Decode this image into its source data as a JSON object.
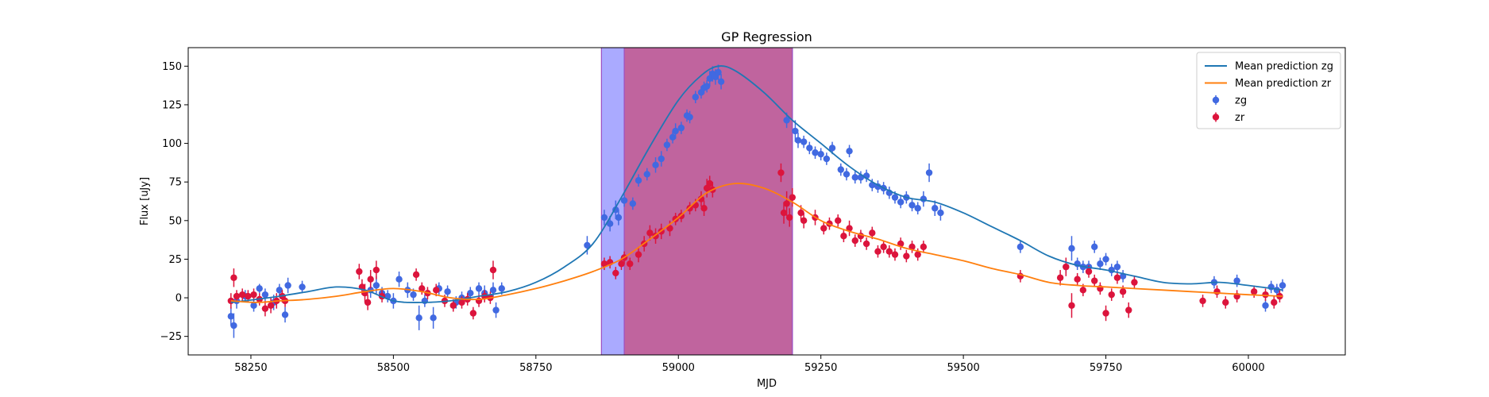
{
  "chart_data": {
    "type": "scatter",
    "title": "GP Regression",
    "xlabel": "MJD",
    "ylabel": "Flux [uJy]",
    "xlim": [
      58140,
      60170
    ],
    "ylim": [
      -37,
      162
    ],
    "xticks": [
      58250,
      58500,
      58750,
      59000,
      59250,
      59500,
      59750,
      60000
    ],
    "yticks": [
      -25,
      0,
      25,
      50,
      75,
      100,
      125,
      150
    ],
    "grid": false,
    "legend_position": "top-right",
    "colors": {
      "band_zg": "#aaaaff",
      "band_zr": "#c0649e",
      "band_edge": "#9b4fc2",
      "mean_zg": "#1f77b4",
      "mean_zr": "#ff7f0e",
      "points_zg": "#4169e1",
      "points_zr": "#dc143c"
    },
    "shaded_regions": [
      {
        "band": "zg",
        "x_start": 58865,
        "x_end": 59200
      },
      {
        "band": "zr",
        "x_start": 58905,
        "x_end": 59200
      }
    ],
    "legend": [
      {
        "label": "Mean prediction zg",
        "kind": "line",
        "color_key": "mean_zg"
      },
      {
        "label": "Mean prediction zr",
        "kind": "line",
        "color_key": "mean_zr"
      },
      {
        "label": "zg",
        "kind": "marker",
        "color_key": "points_zg"
      },
      {
        "label": "zr",
        "kind": "marker",
        "color_key": "points_zr"
      }
    ],
    "series": [
      {
        "name": "Mean prediction zg",
        "kind": "line",
        "color_key": "mean_zg",
        "x": [
          58215,
          58260,
          58300,
          58350,
          58400,
          58450,
          58500,
          58550,
          58600,
          58650,
          58700,
          58750,
          58800,
          58850,
          58900,
          58950,
          59000,
          59040,
          59070,
          59100,
          59150,
          59200,
          59250,
          59300,
          59350,
          59400,
          59450,
          59500,
          59550,
          59600,
          59650,
          59700,
          59750,
          59800,
          59850,
          59900,
          59950,
          60000,
          60060
        ],
        "y": [
          -3,
          -1,
          1,
          4,
          7,
          5,
          -2,
          -3,
          -2,
          1,
          4,
          10,
          20,
          35,
          65,
          98,
          128,
          144,
          150,
          147,
          133,
          115,
          100,
          85,
          73,
          65,
          62,
          55,
          46,
          37,
          27,
          21,
          18,
          14,
          10,
          9,
          10,
          8,
          5
        ]
      },
      {
        "name": "Mean prediction zr",
        "kind": "line",
        "color_key": "mean_zr",
        "x": [
          58215,
          58260,
          58300,
          58350,
          58400,
          58450,
          58500,
          58550,
          58600,
          58650,
          58700,
          58750,
          58800,
          58850,
          58900,
          58950,
          59000,
          59050,
          59100,
          59150,
          59200,
          59250,
          59300,
          59350,
          59400,
          59450,
          59500,
          59550,
          59600,
          59650,
          59700,
          59750,
          59800,
          59850,
          59900,
          59950,
          60000,
          60060
        ],
        "y": [
          -2,
          -3,
          -2,
          -1,
          1,
          4,
          6,
          4,
          0,
          -1,
          2,
          6,
          11,
          17,
          25,
          38,
          52,
          68,
          74,
          71,
          62,
          50,
          43,
          38,
          32,
          28,
          24,
          19,
          15,
          10,
          8,
          7,
          6,
          5,
          4,
          3,
          2,
          1
        ]
      },
      {
        "name": "zg",
        "kind": "points",
        "color_key": "points_zg",
        "points": [
          [
            58215,
            -12,
            6
          ],
          [
            58220,
            -18,
            8
          ],
          [
            58225,
            -2,
            5
          ],
          [
            58240,
            1,
            4
          ],
          [
            58255,
            -5,
            4
          ],
          [
            58265,
            6,
            3
          ],
          [
            58275,
            2,
            4
          ],
          [
            58290,
            -3,
            5
          ],
          [
            58300,
            5,
            4
          ],
          [
            58310,
            -11,
            5
          ],
          [
            58315,
            8,
            5
          ],
          [
            58340,
            7,
            4
          ],
          [
            58460,
            5,
            5
          ],
          [
            58470,
            8,
            6
          ],
          [
            58480,
            3,
            4
          ],
          [
            58490,
            1,
            4
          ],
          [
            58500,
            -2,
            5
          ],
          [
            58510,
            12,
            5
          ],
          [
            58525,
            5,
            5
          ],
          [
            58535,
            2,
            4
          ],
          [
            58545,
            -13,
            8
          ],
          [
            58555,
            -2,
            4
          ],
          [
            58570,
            -13,
            7
          ],
          [
            58580,
            6,
            4
          ],
          [
            58595,
            4,
            4
          ],
          [
            58610,
            -3,
            4
          ],
          [
            58620,
            0,
            4
          ],
          [
            58635,
            3,
            4
          ],
          [
            58650,
            6,
            4
          ],
          [
            58660,
            3,
            5
          ],
          [
            58675,
            5,
            5
          ],
          [
            58680,
            -8,
            5
          ],
          [
            58690,
            6,
            4
          ],
          [
            58840,
            34,
            6
          ],
          [
            58870,
            52,
            5
          ],
          [
            58880,
            48,
            5
          ],
          [
            58890,
            57,
            6
          ],
          [
            58895,
            52,
            5
          ],
          [
            58905,
            63,
            4
          ],
          [
            58920,
            61,
            4
          ],
          [
            58930,
            76,
            4
          ],
          [
            58945,
            80,
            4
          ],
          [
            58960,
            86,
            5
          ],
          [
            58970,
            90,
            5
          ],
          [
            58980,
            99,
            4
          ],
          [
            58990,
            104,
            4
          ],
          [
            58995,
            108,
            5
          ],
          [
            59005,
            110,
            4
          ],
          [
            59015,
            118,
            4
          ],
          [
            59020,
            117,
            4
          ],
          [
            59030,
            130,
            4
          ],
          [
            59040,
            133,
            4
          ],
          [
            59045,
            136,
            4
          ],
          [
            59050,
            137,
            4
          ],
          [
            59055,
            142,
            5
          ],
          [
            59060,
            145,
            5
          ],
          [
            59065,
            143,
            5
          ],
          [
            59070,
            146,
            5
          ],
          [
            59075,
            140,
            5
          ],
          [
            59190,
            115,
            5
          ],
          [
            59205,
            108,
            7
          ],
          [
            59210,
            102,
            5
          ],
          [
            59220,
            101,
            4
          ],
          [
            59230,
            97,
            4
          ],
          [
            59240,
            94,
            4
          ],
          [
            59250,
            93,
            4
          ],
          [
            59260,
            90,
            4
          ],
          [
            59270,
            97,
            4
          ],
          [
            59285,
            83,
            4
          ],
          [
            59295,
            80,
            4
          ],
          [
            59300,
            95,
            4
          ],
          [
            59310,
            78,
            4
          ],
          [
            59320,
            78,
            4
          ],
          [
            59330,
            79,
            4
          ],
          [
            59340,
            73,
            4
          ],
          [
            59350,
            72,
            4
          ],
          [
            59360,
            71,
            4
          ],
          [
            59370,
            68,
            4
          ],
          [
            59380,
            65,
            4
          ],
          [
            59390,
            62,
            4
          ],
          [
            59400,
            65,
            4
          ],
          [
            59410,
            60,
            4
          ],
          [
            59420,
            58,
            4
          ],
          [
            59430,
            64,
            5
          ],
          [
            59440,
            81,
            6
          ],
          [
            59450,
            58,
            5
          ],
          [
            59460,
            55,
            5
          ],
          [
            59600,
            33,
            4
          ],
          [
            59680,
            20,
            4
          ],
          [
            59690,
            32,
            8
          ],
          [
            59700,
            22,
            4
          ],
          [
            59710,
            20,
            4
          ],
          [
            59720,
            20,
            4
          ],
          [
            59730,
            33,
            4
          ],
          [
            59740,
            22,
            4
          ],
          [
            59750,
            25,
            4
          ],
          [
            59760,
            18,
            4
          ],
          [
            59770,
            20,
            4
          ],
          [
            59780,
            14,
            4
          ],
          [
            59940,
            10,
            4
          ],
          [
            59980,
            11,
            4
          ],
          [
            60030,
            -5,
            4
          ],
          [
            60040,
            7,
            4
          ],
          [
            60050,
            5,
            4
          ],
          [
            60060,
            8,
            4
          ]
        ]
      },
      {
        "name": "zr",
        "kind": "points",
        "color_key": "points_zr",
        "points": [
          [
            58215,
            -2,
            5
          ],
          [
            58220,
            13,
            6
          ],
          [
            58225,
            1,
            4
          ],
          [
            58235,
            2,
            4
          ],
          [
            58245,
            1,
            4
          ],
          [
            58255,
            2,
            4
          ],
          [
            58265,
            -1,
            4
          ],
          [
            58275,
            -7,
            5
          ],
          [
            58285,
            -5,
            5
          ],
          [
            58295,
            -2,
            5
          ],
          [
            58305,
            1,
            4
          ],
          [
            58310,
            -2,
            4
          ],
          [
            58440,
            17,
            5
          ],
          [
            58445,
            7,
            5
          ],
          [
            58450,
            3,
            6
          ],
          [
            58455,
            -3,
            5
          ],
          [
            58460,
            12,
            6
          ],
          [
            58470,
            18,
            6
          ],
          [
            58480,
            1,
            4
          ],
          [
            58540,
            15,
            4
          ],
          [
            58550,
            6,
            4
          ],
          [
            58560,
            3,
            4
          ],
          [
            58575,
            5,
            4
          ],
          [
            58590,
            -2,
            4
          ],
          [
            58605,
            -5,
            4
          ],
          [
            58620,
            -3,
            4
          ],
          [
            58630,
            -1,
            4
          ],
          [
            58640,
            -10,
            4
          ],
          [
            58650,
            -2,
            4
          ],
          [
            58660,
            1,
            4
          ],
          [
            58670,
            0,
            4
          ],
          [
            58675,
            18,
            6
          ],
          [
            58870,
            22,
            4
          ],
          [
            58880,
            23,
            4
          ],
          [
            58890,
            16,
            4
          ],
          [
            58900,
            22,
            4
          ],
          [
            58905,
            26,
            4
          ],
          [
            58915,
            22,
            4
          ],
          [
            58930,
            28,
            5
          ],
          [
            58940,
            35,
            5
          ],
          [
            58950,
            42,
            5
          ],
          [
            58960,
            40,
            5
          ],
          [
            58970,
            43,
            5
          ],
          [
            58985,
            45,
            5
          ],
          [
            58995,
            51,
            4
          ],
          [
            59005,
            53,
            4
          ],
          [
            59020,
            58,
            4
          ],
          [
            59030,
            60,
            4
          ],
          [
            59040,
            64,
            5
          ],
          [
            59045,
            58,
            5
          ],
          [
            59050,
            71,
            6
          ],
          [
            59055,
            74,
            5
          ],
          [
            59060,
            70,
            5
          ],
          [
            59180,
            81,
            6
          ],
          [
            59185,
            55,
            7
          ],
          [
            59190,
            61,
            8
          ],
          [
            59195,
            52,
            6
          ],
          [
            59200,
            65,
            6
          ],
          [
            59215,
            55,
            5
          ],
          [
            59220,
            50,
            5
          ],
          [
            59240,
            52,
            5
          ],
          [
            59255,
            45,
            4
          ],
          [
            59265,
            48,
            4
          ],
          [
            59280,
            50,
            4
          ],
          [
            59290,
            40,
            4
          ],
          [
            59300,
            45,
            5
          ],
          [
            59310,
            37,
            4
          ],
          [
            59320,
            40,
            4
          ],
          [
            59330,
            35,
            4
          ],
          [
            59340,
            42,
            4
          ],
          [
            59350,
            30,
            4
          ],
          [
            59360,
            33,
            4
          ],
          [
            59370,
            30,
            4
          ],
          [
            59380,
            28,
            4
          ],
          [
            59390,
            35,
            4
          ],
          [
            59400,
            27,
            4
          ],
          [
            59410,
            33,
            4
          ],
          [
            59420,
            28,
            4
          ],
          [
            59430,
            33,
            4
          ],
          [
            59600,
            14,
            4
          ],
          [
            59670,
            13,
            5
          ],
          [
            59680,
            20,
            6
          ],
          [
            59690,
            -5,
            8
          ],
          [
            59700,
            12,
            4
          ],
          [
            59710,
            5,
            4
          ],
          [
            59720,
            17,
            4
          ],
          [
            59730,
            11,
            4
          ],
          [
            59740,
            6,
            4
          ],
          [
            59750,
            -10,
            5
          ],
          [
            59760,
            2,
            4
          ],
          [
            59770,
            13,
            4
          ],
          [
            59780,
            4,
            4
          ],
          [
            59790,
            -8,
            5
          ],
          [
            59800,
            10,
            4
          ],
          [
            59920,
            -2,
            4
          ],
          [
            59945,
            4,
            4
          ],
          [
            59960,
            -3,
            4
          ],
          [
            59980,
            1,
            4
          ],
          [
            60010,
            4,
            4
          ],
          [
            60030,
            2,
            4
          ],
          [
            60045,
            -3,
            4
          ],
          [
            60055,
            1,
            4
          ]
        ]
      }
    ]
  }
}
